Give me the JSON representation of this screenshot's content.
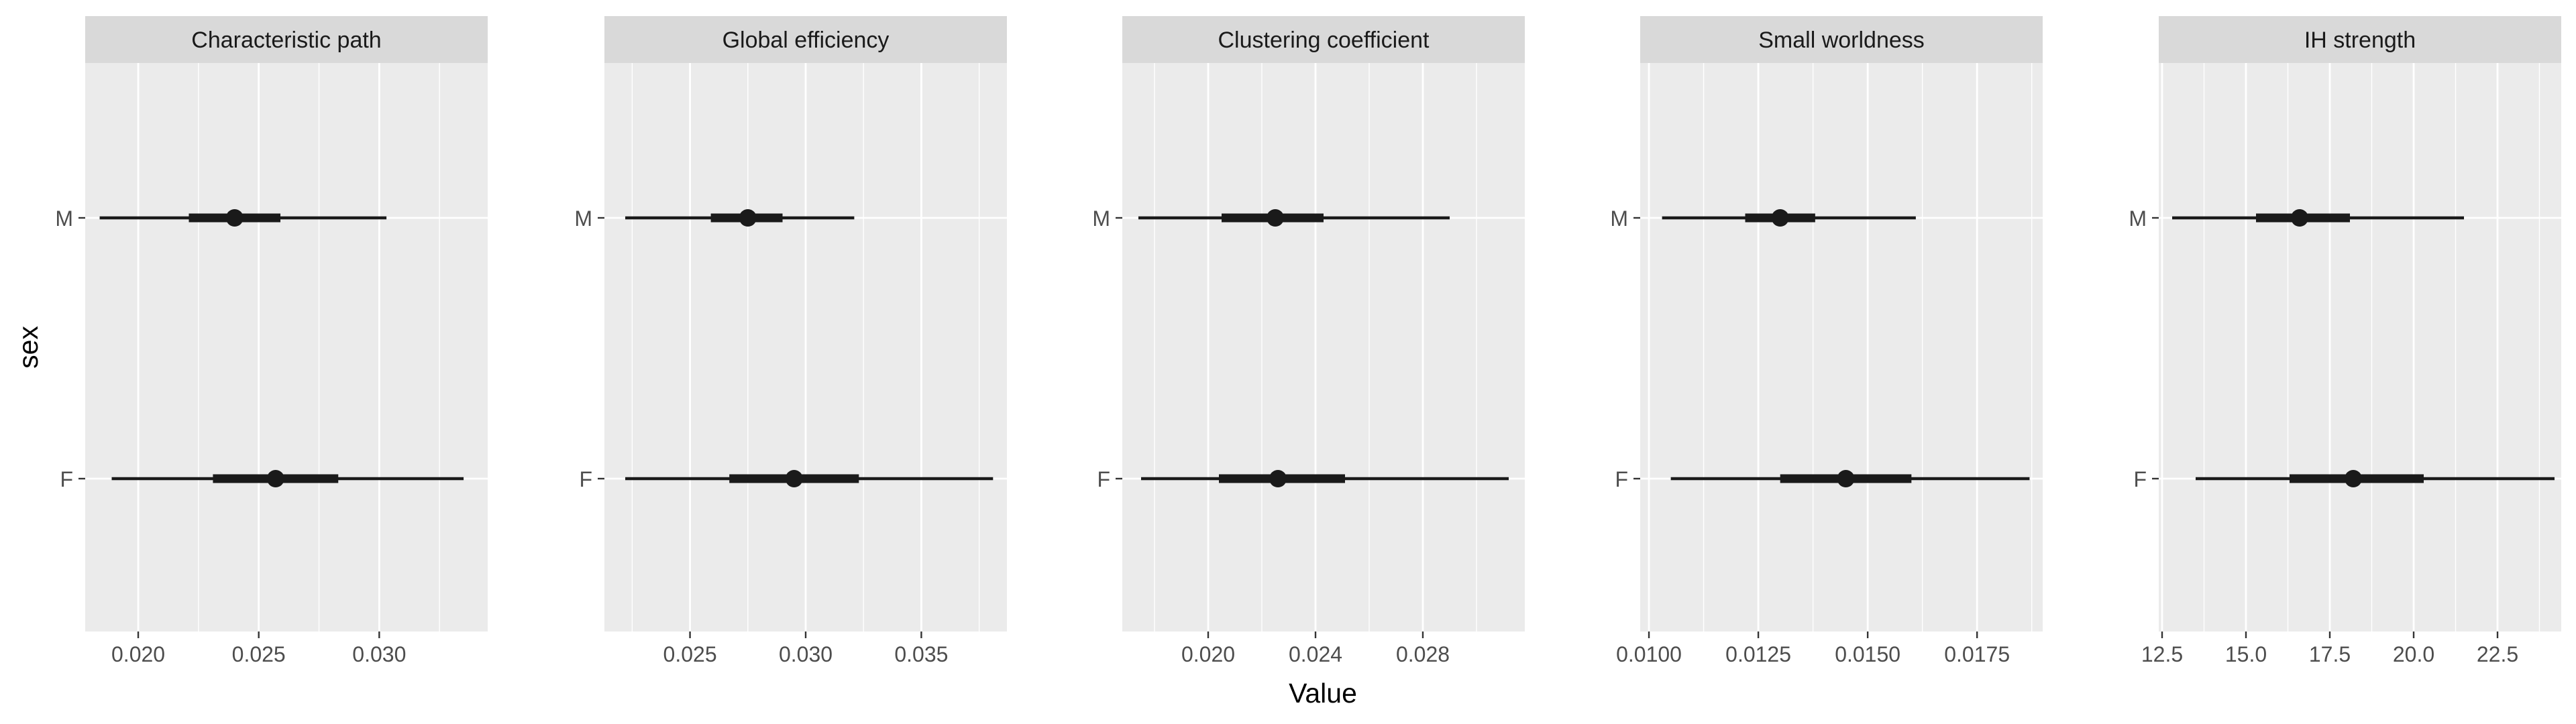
{
  "chart_data": {
    "type": "interval",
    "facet_layout": "1 row x 5 columns",
    "xlabel": "Value",
    "ylabel": "sex",
    "y_categories": [
      "M",
      "F"
    ],
    "grid": true,
    "legend": "none",
    "colors": {
      "panel_bg": "#ebebeb",
      "strip_bg": "#d9d9d9",
      "grid": "#ffffff",
      "interval": "#1a1a1a"
    },
    "panels": [
      {
        "title": "Characteristic path",
        "xlim": [
          0.0178,
          0.0345
        ],
        "xticks": [
          0.02,
          0.025,
          0.03
        ],
        "xtick_labels": [
          "0.020",
          "0.025",
          "0.030"
        ],
        "rows": [
          {
            "sex": "M",
            "median": 0.024,
            "inner": [
              0.0221,
              0.0259
            ],
            "outer": [
              0.0184,
              0.0303
            ]
          },
          {
            "sex": "F",
            "median": 0.0257,
            "inner": [
              0.0231,
              0.0283
            ],
            "outer": [
              0.0189,
              0.0335
            ]
          }
        ]
      },
      {
        "title": "Global efficiency",
        "xlim": [
          0.0213,
          0.0387
        ],
        "xticks": [
          0.025,
          0.03,
          0.035
        ],
        "xtick_labels": [
          "0.025",
          "0.030",
          "0.035"
        ],
        "rows": [
          {
            "sex": "M",
            "median": 0.0275,
            "inner": [
              0.0259,
              0.029
            ],
            "outer": [
              0.0222,
              0.0321
            ]
          },
          {
            "sex": "F",
            "median": 0.0295,
            "inner": [
              0.0267,
              0.0323
            ],
            "outer": [
              0.0222,
              0.0381
            ]
          }
        ]
      },
      {
        "title": "Clustering coefficient",
        "xlim": [
          0.0168,
          0.0318
        ],
        "xticks": [
          0.02,
          0.024,
          0.028
        ],
        "xtick_labels": [
          "0.020",
          "0.024",
          "0.028"
        ],
        "rows": [
          {
            "sex": "M",
            "median": 0.0225,
            "inner": [
              0.0205,
              0.0243
            ],
            "outer": [
              0.0174,
              0.029
            ]
          },
          {
            "sex": "F",
            "median": 0.0226,
            "inner": [
              0.0204,
              0.0251
            ],
            "outer": [
              0.0175,
              0.0312
            ]
          }
        ]
      },
      {
        "title": "Small worldness",
        "xlim": [
          0.0098,
          0.019
        ],
        "xticks": [
          0.01,
          0.0125,
          0.015,
          0.0175
        ],
        "xtick_labels": [
          "0.0100",
          "0.0125",
          "0.0150",
          "0.0175"
        ],
        "rows": [
          {
            "sex": "M",
            "median": 0.013,
            "inner": [
              0.0122,
              0.0138
            ],
            "outer": [
              0.0103,
              0.0161
            ]
          },
          {
            "sex": "F",
            "median": 0.0145,
            "inner": [
              0.013,
              0.016
            ],
            "outer": [
              0.0105,
              0.0187
            ]
          }
        ]
      },
      {
        "title": "IH strength",
        "xlim": [
          12.4,
          24.4
        ],
        "xticks": [
          12.5,
          15.0,
          17.5,
          20.0,
          22.5
        ],
        "xtick_labels": [
          "12.5",
          "15.0",
          "17.5",
          "20.0",
          "22.5"
        ],
        "rows": [
          {
            "sex": "M",
            "median": 16.6,
            "inner": [
              15.3,
              18.1
            ],
            "outer": [
              12.8,
              21.5
            ]
          },
          {
            "sex": "F",
            "median": 18.2,
            "inner": [
              16.3,
              20.3
            ],
            "outer": [
              13.5,
              24.2
            ]
          }
        ]
      }
    ]
  }
}
